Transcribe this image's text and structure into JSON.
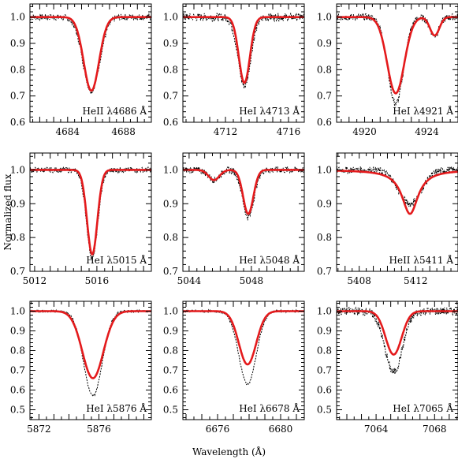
{
  "figure": {
    "ylabel": "Normalized flux",
    "xlabel": "Wavelength (Å)"
  },
  "colors": {
    "model": "#e41a1c",
    "observed": "#000000",
    "axes": "#000000"
  },
  "chart_data": [
    {
      "type": "line",
      "label": "HeII λ4686 Å",
      "xlim": [
        4681.3,
        4690.0
      ],
      "ylim": [
        0.6,
        1.05
      ],
      "xticks": [
        4684,
        4688
      ],
      "yticks": [
        0.6,
        0.7,
        0.8,
        0.9,
        1.0
      ],
      "line_center": 4685.7,
      "model": {
        "depth": 0.28,
        "width": 0.55
      },
      "observed": {
        "depth": 0.28,
        "width": 0.6,
        "noise": 0.012
      },
      "series": [
        {
          "name": "",
          "style": "red solid"
        },
        {
          "name": "",
          "style": "black dashed"
        }
      ]
    },
    {
      "type": "line",
      "label": "HeI λ4713 Å",
      "xlim": [
        4709.3,
        4717.0
      ],
      "ylim": [
        0.6,
        1.05
      ],
      "xticks": [
        4712,
        4716
      ],
      "yticks": [
        0.6,
        0.7,
        0.8,
        0.9,
        1.0
      ],
      "line_center": 4713.2,
      "model": {
        "depth": 0.25,
        "width": 0.35
      },
      "observed": {
        "depth": 0.26,
        "width": 0.4,
        "noise": 0.015
      }
    },
    {
      "type": "line",
      "label": "HeI λ4921 Å",
      "xlim": [
        4918.2,
        4926.0
      ],
      "ylim": [
        0.6,
        1.05
      ],
      "xticks": [
        4920,
        4924
      ],
      "yticks": [
        0.6,
        0.7,
        0.8,
        0.9,
        1.0
      ],
      "line_center": 4922.0,
      "model": {
        "depth": 0.29,
        "width": 0.55
      },
      "observed": {
        "depth": 0.33,
        "width": 0.5,
        "noise": 0.013
      },
      "secondary": {
        "center": 4924.5,
        "depth": 0.07,
        "width": 0.3
      }
    },
    {
      "type": "line",
      "label": "HeI λ5015 Å",
      "xlim": [
        5011.7,
        5019.5
      ],
      "ylim": [
        0.7,
        1.05
      ],
      "xticks": [
        5012,
        5016
      ],
      "yticks": [
        0.7,
        0.8,
        0.9,
        1.0
      ],
      "line_center": 5015.7,
      "model": {
        "depth": 0.25,
        "width": 0.33
      },
      "observed": {
        "depth": 0.26,
        "width": 0.36,
        "noise": 0.008
      }
    },
    {
      "type": "line",
      "label": "HeI λ5048 Å",
      "xlim": [
        5043.6,
        5051.4
      ],
      "ylim": [
        0.7,
        1.05
      ],
      "xticks": [
        5044,
        5048
      ],
      "yticks": [
        0.7,
        0.8,
        0.9,
        1.0
      ],
      "line_center": 5047.8,
      "model": {
        "depth": 0.13,
        "width": 0.33
      },
      "observed": {
        "depth": 0.14,
        "width": 0.36,
        "noise": 0.01
      },
      "secondary": {
        "center": 5045.6,
        "depth": 0.03,
        "width": 0.35
      }
    },
    {
      "type": "line",
      "label": "HeII λ5411 Å",
      "xlim": [
        5406.4,
        5415.0
      ],
      "ylim": [
        0.7,
        1.05
      ],
      "xticks": [
        5408,
        5412
      ],
      "yticks": [
        0.7,
        0.8,
        0.9,
        1.0
      ],
      "line_center": 5411.6,
      "model": {
        "depth": 0.13,
        "width": 0.7,
        "lorentz": true
      },
      "observed": {
        "depth": 0.1,
        "width": 0.8,
        "noise": 0.01
      }
    },
    {
      "type": "line",
      "label": "HeI λ5876 Å",
      "xlim": [
        5871.4,
        5879.5
      ],
      "ylim": [
        0.45,
        1.05
      ],
      "xticks": [
        5872,
        5876
      ],
      "yticks": [
        0.5,
        0.6,
        0.7,
        0.8,
        0.9,
        1.0
      ],
      "line_center": 5875.6,
      "model": {
        "depth": 0.34,
        "width": 0.7
      },
      "observed": {
        "depth": 0.43,
        "width": 0.62,
        "noise": 0.006
      }
    },
    {
      "type": "line",
      "label": "HeI λ6678 Å",
      "xlim": [
        6673.8,
        6681.5
      ],
      "ylim": [
        0.45,
        1.05
      ],
      "xticks": [
        6676,
        6680
      ],
      "yticks": [
        0.5,
        0.6,
        0.7,
        0.8,
        0.9,
        1.0
      ],
      "line_center": 6677.9,
      "model": {
        "depth": 0.27,
        "width": 0.55
      },
      "observed": {
        "depth": 0.37,
        "width": 0.55,
        "noise": 0.006
      }
    },
    {
      "type": "line",
      "label": "HeI λ7065 Å",
      "xlim": [
        7061.3,
        7069.6
      ],
      "ylim": [
        0.45,
        1.05
      ],
      "xticks": [
        7064,
        7068
      ],
      "yticks": [
        0.5,
        0.6,
        0.7,
        0.8,
        0.9,
        1.0
      ],
      "line_center": 7065.2,
      "model": {
        "depth": 0.22,
        "width": 0.55
      },
      "observed": {
        "depth": 0.31,
        "width": 0.6,
        "noise": 0.02
      }
    }
  ]
}
